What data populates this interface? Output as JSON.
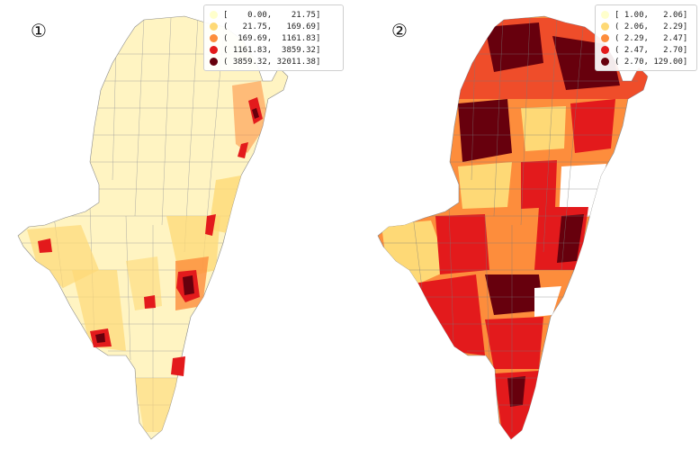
{
  "maps": [
    {
      "label": "①",
      "legend": [
        {
          "text": "[    0.00,    21.75]",
          "color": "#ffffcc"
        },
        {
          "text": "(   21.75,   169.69]",
          "color": "#fed976"
        },
        {
          "text": "(  169.69,  1161.83]",
          "color": "#fd8d3c"
        },
        {
          "text": "( 1161.83,  3859.32]",
          "color": "#e31a1c"
        },
        {
          "text": "( 3859.32, 32011.38]",
          "color": "#67000d"
        }
      ]
    },
    {
      "label": "②",
      "legend": [
        {
          "text": "[ 1.00,   2.06]",
          "color": "#ffffcc"
        },
        {
          "text": "( 2.06,   2.29]",
          "color": "#fed976"
        },
        {
          "text": "( 2.29,   2.47]",
          "color": "#fd8d3c"
        },
        {
          "text": "( 2.47,   2.70]",
          "color": "#e31a1c"
        },
        {
          "text": "( 2.70, 129.00]",
          "color": "#67000d"
        }
      ]
    }
  ]
}
